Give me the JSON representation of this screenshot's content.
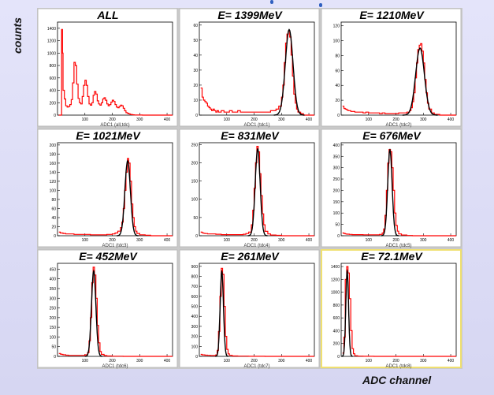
{
  "axis": {
    "ylabel": "counts",
    "xlabel": "ADC channel"
  },
  "colors": {
    "data": "#ff0000",
    "fit": "#000000",
    "panel_bg": "#ffffff",
    "highlight_border": "#f0e070"
  },
  "chart_data": [
    {
      "type": "line",
      "title": "ALL",
      "xlabel": "ADC1 (all,tdc)",
      "xlim": [
        0,
        420
      ],
      "xticks": [
        100,
        200,
        300,
        400
      ],
      "ylim": [
        0,
        1500
      ],
      "yticks": [
        0,
        200,
        400,
        600,
        800,
        1000,
        1200,
        1400
      ],
      "series": [
        {
          "name": "data",
          "kind": "hist",
          "x": [
            5,
            12,
            15,
            18,
            20,
            25,
            30,
            35,
            40,
            45,
            50,
            55,
            60,
            65,
            70,
            75,
            80,
            85,
            90,
            95,
            100,
            105,
            110,
            115,
            120,
            125,
            130,
            135,
            140,
            145,
            150,
            155,
            160,
            165,
            170,
            175,
            180,
            185,
            190,
            195,
            200,
            205,
            210,
            215,
            220,
            225,
            230,
            235,
            240,
            245,
            250,
            255,
            260,
            265,
            270,
            275,
            280,
            285,
            290,
            300,
            310,
            320,
            330,
            340,
            350,
            360,
            380,
            400,
            420
          ],
          "y": [
            0,
            0,
            1380,
            1000,
            400,
            260,
            150,
            130,
            140,
            170,
            250,
            520,
            850,
            800,
            500,
            270,
            200,
            180,
            300,
            480,
            560,
            480,
            300,
            180,
            160,
            200,
            320,
            380,
            340,
            230,
            180,
            160,
            200,
            260,
            280,
            240,
            180,
            150,
            170,
            210,
            240,
            220,
            170,
            130,
            120,
            140,
            160,
            150,
            110,
            70,
            40,
            30,
            20,
            12,
            8,
            5,
            3,
            2,
            1,
            1,
            0,
            0,
            0,
            0,
            0,
            0,
            0,
            0,
            0
          ]
        }
      ]
    },
    {
      "type": "line",
      "title": "E= 1399MeV",
      "xlabel": "ADC1 (tdc1)",
      "xlim": [
        0,
        420
      ],
      "xticks": [
        100,
        200,
        300,
        400
      ],
      "ylim": [
        0,
        62
      ],
      "yticks": [
        0,
        10,
        20,
        30,
        40,
        50,
        60
      ],
      "series": [
        {
          "name": "data",
          "kind": "hist",
          "x": [
            5,
            10,
            15,
            20,
            25,
            30,
            35,
            40,
            45,
            50,
            55,
            60,
            65,
            70,
            80,
            90,
            100,
            110,
            120,
            130,
            140,
            150,
            160,
            170,
            180,
            190,
            200,
            210,
            220,
            230,
            240,
            250,
            260,
            270,
            280,
            290,
            300,
            305,
            310,
            315,
            320,
            325,
            330,
            335,
            340,
            345,
            350,
            355,
            360,
            370,
            380,
            400,
            420
          ],
          "y": [
            18,
            12,
            10,
            9,
            8,
            6,
            5,
            4,
            3,
            4,
            3,
            2,
            3,
            2,
            3,
            2,
            2,
            3,
            2,
            2,
            3,
            2,
            2,
            2,
            2,
            2,
            2,
            2,
            2,
            2,
            2,
            2,
            3,
            3,
            4,
            6,
            12,
            20,
            35,
            48,
            54,
            56,
            52,
            40,
            26,
            14,
            8,
            4,
            2,
            1,
            0,
            0,
            0
          ]
        },
        {
          "name": "fit",
          "kind": "gauss",
          "mean": 328,
          "sigma": 14,
          "amp": 57
        }
      ]
    },
    {
      "type": "line",
      "title": "E= 1210MeV",
      "xlabel": "ADC1 (tdc2)",
      "xlim": [
        0,
        420
      ],
      "xticks": [
        100,
        200,
        300,
        400
      ],
      "ylim": [
        0,
        125
      ],
      "yticks": [
        0,
        20,
        40,
        60,
        80,
        100,
        120
      ],
      "series": [
        {
          "name": "data",
          "kind": "hist",
          "x": [
            5,
            10,
            15,
            20,
            25,
            30,
            35,
            40,
            50,
            60,
            70,
            80,
            90,
            100,
            110,
            120,
            130,
            140,
            150,
            160,
            170,
            180,
            190,
            200,
            210,
            220,
            230,
            240,
            250,
            255,
            260,
            265,
            270,
            275,
            280,
            285,
            290,
            295,
            300,
            305,
            310,
            315,
            320,
            330,
            340,
            360,
            380,
            400,
            420
          ],
          "y": [
            12,
            9,
            8,
            7,
            6,
            6,
            5,
            5,
            4,
            4,
            4,
            3,
            4,
            3,
            3,
            3,
            3,
            2,
            3,
            2,
            2,
            2,
            2,
            2,
            3,
            3,
            3,
            4,
            6,
            10,
            18,
            30,
            50,
            70,
            88,
            94,
            96,
            86,
            70,
            48,
            30,
            16,
            8,
            3,
            1,
            0,
            0,
            0,
            0
          ]
        },
        {
          "name": "fit",
          "kind": "gauss",
          "mean": 288,
          "sigma": 16,
          "amp": 90
        }
      ]
    },
    {
      "type": "line",
      "title": "E= 1021MeV",
      "xlabel": "ADC1 (tdc3)",
      "xlim": [
        0,
        420
      ],
      "xticks": [
        100,
        200,
        300,
        400
      ],
      "ylim": [
        0,
        205
      ],
      "yticks": [
        0,
        20,
        40,
        60,
        80,
        100,
        120,
        140,
        160,
        180,
        200
      ],
      "series": [
        {
          "name": "data",
          "kind": "hist",
          "x": [
            5,
            10,
            15,
            20,
            30,
            40,
            60,
            80,
            100,
            120,
            140,
            160,
            180,
            200,
            210,
            220,
            230,
            235,
            240,
            245,
            250,
            255,
            260,
            265,
            270,
            275,
            280,
            285,
            290,
            300,
            320,
            340,
            380,
            420
          ],
          "y": [
            8,
            6,
            6,
            5,
            4,
            4,
            3,
            3,
            3,
            2,
            2,
            2,
            3,
            4,
            6,
            10,
            18,
            30,
            60,
            100,
            140,
            170,
            160,
            120,
            70,
            40,
            20,
            10,
            5,
            2,
            1,
            0,
            0,
            0
          ]
        },
        {
          "name": "fit",
          "kind": "gauss",
          "mean": 256,
          "sigma": 10,
          "amp": 165
        }
      ]
    },
    {
      "type": "line",
      "title": "E= 831MeV",
      "xlabel": "ADC1 (tdc4)",
      "xlim": [
        0,
        420
      ],
      "xticks": [
        100,
        200,
        300,
        400
      ],
      "ylim": [
        0,
        255
      ],
      "yticks": [
        0,
        50,
        100,
        150,
        200,
        250
      ],
      "series": [
        {
          "name": "data",
          "kind": "hist",
          "x": [
            5,
            10,
            15,
            20,
            30,
            40,
            60,
            80,
            100,
            120,
            140,
            160,
            170,
            180,
            190,
            195,
            200,
            205,
            210,
            215,
            220,
            225,
            230,
            235,
            240,
            250,
            260,
            280,
            300,
            340,
            380,
            420
          ],
          "y": [
            10,
            8,
            7,
            6,
            5,
            5,
            4,
            3,
            3,
            3,
            3,
            4,
            6,
            10,
            30,
            70,
            130,
            200,
            245,
            230,
            170,
            110,
            60,
            30,
            12,
            5,
            2,
            1,
            0,
            0,
            0,
            0
          ]
        },
        {
          "name": "fit",
          "kind": "gauss",
          "mean": 213,
          "sigma": 9,
          "amp": 238
        }
      ]
    },
    {
      "type": "line",
      "title": "E= 676MeV",
      "xlabel": "ADC1 (tdc5)",
      "xlim": [
        0,
        420
      ],
      "xticks": [
        100,
        200,
        300,
        400
      ],
      "ylim": [
        0,
        410
      ],
      "yticks": [
        0,
        50,
        100,
        150,
        200,
        250,
        300,
        350,
        400
      ],
      "series": [
        {
          "name": "data",
          "kind": "hist",
          "x": [
            5,
            10,
            15,
            20,
            30,
            40,
            60,
            80,
            100,
            120,
            140,
            150,
            155,
            160,
            165,
            170,
            175,
            180,
            185,
            190,
            195,
            200,
            205,
            210,
            220,
            240,
            260,
            300,
            340,
            380,
            420
          ],
          "y": [
            12,
            10,
            8,
            7,
            6,
            5,
            5,
            4,
            4,
            4,
            6,
            12,
            30,
            90,
            200,
            320,
            380,
            370,
            300,
            200,
            100,
            45,
            20,
            8,
            3,
            1,
            0,
            0,
            0,
            0,
            0
          ]
        },
        {
          "name": "fit",
          "kind": "gauss",
          "mean": 178,
          "sigma": 8,
          "amp": 378
        }
      ]
    },
    {
      "type": "line",
      "title": "E= 452MeV",
      "xlabel": "ADC1 (tdc6)",
      "xlim": [
        0,
        420
      ],
      "xticks": [
        100,
        200,
        300,
        400
      ],
      "ylim": [
        0,
        480
      ],
      "yticks": [
        0,
        50,
        100,
        150,
        200,
        250,
        300,
        350,
        400,
        450
      ],
      "series": [
        {
          "name": "data",
          "kind": "hist",
          "x": [
            5,
            10,
            15,
            20,
            30,
            40,
            60,
            80,
            100,
            110,
            115,
            120,
            125,
            130,
            135,
            140,
            145,
            150,
            155,
            160,
            170,
            180,
            200,
            240,
            300,
            360,
            420
          ],
          "y": [
            15,
            12,
            10,
            8,
            6,
            5,
            5,
            5,
            8,
            20,
            80,
            200,
            380,
            460,
            420,
            300,
            160,
            70,
            25,
            10,
            4,
            2,
            1,
            0,
            0,
            0,
            0
          ]
        },
        {
          "name": "fit",
          "kind": "gauss",
          "mean": 132,
          "sigma": 8,
          "amp": 440
        }
      ]
    },
    {
      "type": "line",
      "title": "E= 261MeV",
      "xlabel": "ADC1 (tdc7)",
      "xlim": [
        0,
        420
      ],
      "xticks": [
        100,
        200,
        300,
        400
      ],
      "ylim": [
        0,
        930
      ],
      "yticks": [
        0,
        100,
        200,
        300,
        400,
        500,
        600,
        700,
        800,
        900
      ],
      "series": [
        {
          "name": "data",
          "kind": "hist",
          "x": [
            5,
            10,
            20,
            30,
            40,
            50,
            60,
            65,
            70,
            75,
            80,
            85,
            90,
            95,
            100,
            105,
            110,
            120,
            140,
            180,
            240,
            300,
            360,
            420
          ],
          "y": [
            20,
            15,
            12,
            10,
            8,
            8,
            15,
            60,
            250,
            600,
            880,
            820,
            500,
            200,
            70,
            25,
            10,
            4,
            2,
            1,
            0,
            0,
            0,
            0
          ]
        },
        {
          "name": "fit",
          "kind": "gauss",
          "mean": 82,
          "sigma": 6,
          "amp": 850
        }
      ]
    },
    {
      "type": "line",
      "title": "E= 72.1MeV",
      "xlabel": "ADC1 (tdc8)",
      "xlim": [
        0,
        420
      ],
      "xticks": [
        100,
        200,
        300,
        400
      ],
      "ylim": [
        0,
        1450
      ],
      "yticks": [
        0,
        200,
        400,
        600,
        800,
        1000,
        1200,
        1400
      ],
      "series": [
        {
          "name": "data",
          "kind": "hist",
          "x": [
            5,
            10,
            15,
            20,
            25,
            30,
            35,
            40,
            45,
            50,
            60,
            80,
            120,
            200,
            300,
            420
          ],
          "y": [
            50,
            300,
            1200,
            1400,
            1300,
            900,
            400,
            120,
            40,
            10,
            4,
            1,
            0,
            0,
            0,
            0
          ]
        },
        {
          "name": "fit",
          "kind": "gauss",
          "mean": 22,
          "sigma": 5,
          "amp": 1330
        }
      ]
    }
  ]
}
